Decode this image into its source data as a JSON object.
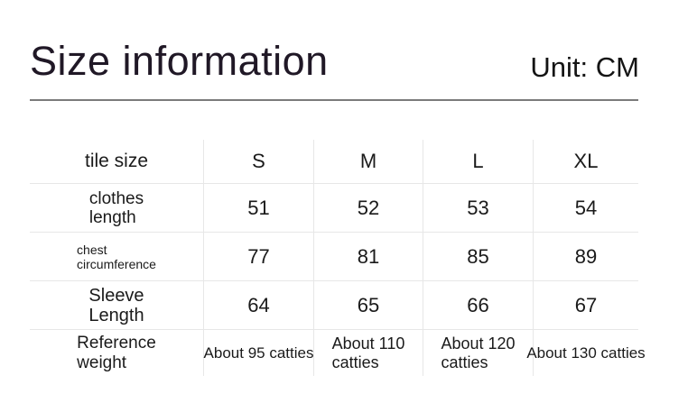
{
  "header": {
    "title": "Size information",
    "unit": "Unit: CM"
  },
  "table": {
    "columns": [
      "tile size",
      "S",
      "M",
      "L",
      "XL"
    ],
    "rows": [
      {
        "label": "clothes\nlength",
        "values": [
          "51",
          "52",
          "53",
          "54"
        ]
      },
      {
        "label": "chest\ncircumference",
        "values": [
          "77",
          "81",
          "85",
          "89"
        ]
      },
      {
        "label": "Sleeve\nLength",
        "values": [
          "64",
          "65",
          "66",
          "67"
        ]
      },
      {
        "label": "Reference\nweight",
        "values": [
          "About 95 catties",
          "About 110\ncatties",
          "About 120\ncatties",
          "About 130 catties"
        ]
      }
    ]
  },
  "colors": {
    "title_text": "#201826",
    "body_text": "#1a1a1a",
    "divider_dark": "#7b7b7b",
    "grid_line": "#e7e7e7",
    "background": "#ffffff"
  }
}
